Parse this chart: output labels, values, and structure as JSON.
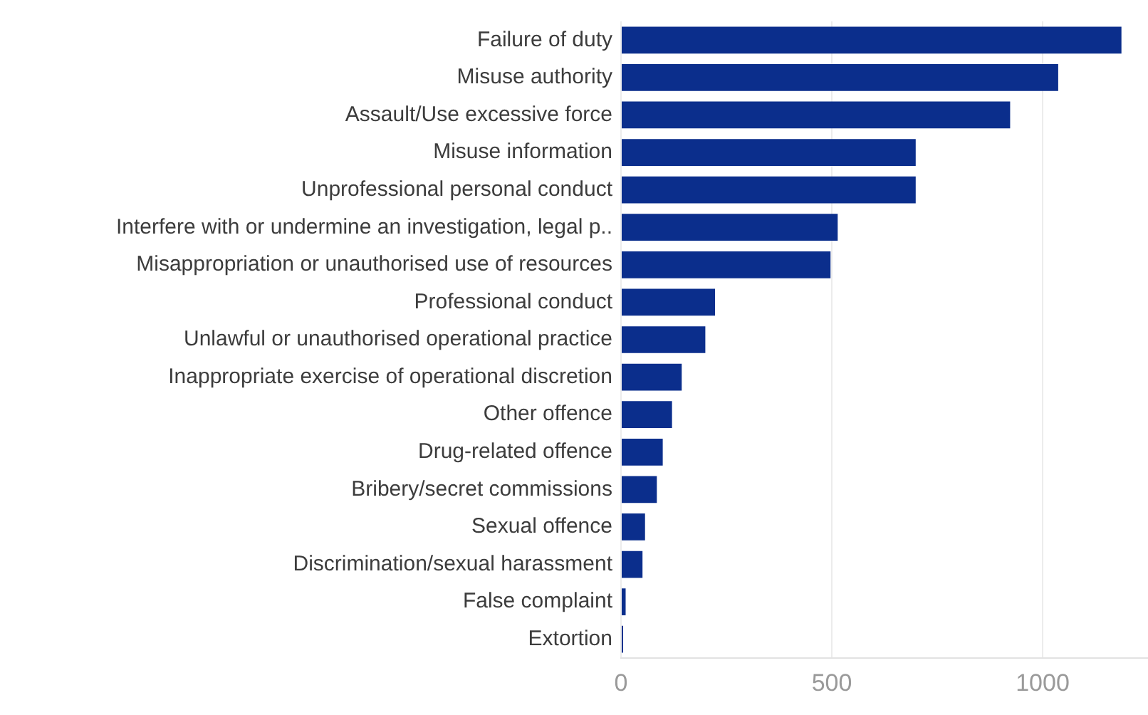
{
  "chart_data": {
    "type": "bar",
    "orientation": "horizontal",
    "categories": [
      "Failure of duty",
      "Misuse authority",
      "Assault/Use excessive force",
      "Misuse information",
      "Unprofessional personal conduct",
      "Interfere with or undermine an investigation, legal p..",
      "Misappropriation or unauthorised use of resources",
      "Professional conduct",
      "Unlawful or unauthorised operational practice",
      "Inappropriate exercise of operational discretion",
      "Other offence",
      "Drug-related offence",
      "Bribery/secret commissions",
      "Sexual offence",
      "Discrimination/sexual harassment",
      "False complaint",
      "Extortion"
    ],
    "values": [
      1187,
      1037,
      923,
      699,
      699,
      514,
      497,
      223,
      200,
      144,
      121,
      99,
      85,
      57,
      51,
      11,
      5
    ],
    "color": "#0b2e8c",
    "xlim": [
      0,
      1250
    ],
    "xticks": [
      0,
      500,
      1000
    ],
    "grid": "x",
    "legend": false
  }
}
